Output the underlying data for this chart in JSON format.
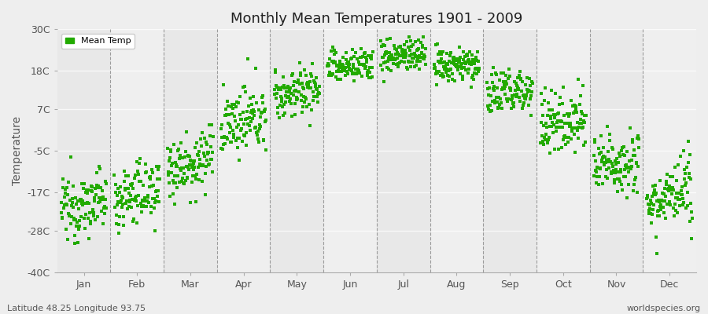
{
  "title": "Monthly Mean Temperatures 1901 - 2009",
  "ylabel": "Temperature",
  "xlabel_bottom_left": "Latitude 48.25 Longitude 93.75",
  "xlabel_bottom_right": "worldspecies.org",
  "legend_label": "Mean Temp",
  "dot_color": "#22aa00",
  "dot_size": 6,
  "background_color": "#eeeeee",
  "plot_bg_color": "#eeeeee",
  "band_color_light": "#ebebeb",
  "band_color_dark": "#e0e0e0",
  "ytick_labels": [
    "30C",
    "18C",
    "7C",
    "-5C",
    "-17C",
    "-28C",
    "-40C"
  ],
  "ytick_values": [
    30,
    18,
    7,
    -5,
    -17,
    -28,
    -40
  ],
  "ylim": [
    -40,
    30
  ],
  "month_names": [
    "Jan",
    "Feb",
    "Mar",
    "Apr",
    "May",
    "Jun",
    "Jul",
    "Aug",
    "Sep",
    "Oct",
    "Nov",
    "Dec"
  ],
  "num_years": 109,
  "year_start": 1901,
  "year_end": 2009,
  "monthly_means": [
    -22,
    -19,
    -10,
    2,
    11,
    19,
    22,
    19,
    11,
    2,
    -10,
    -20
  ],
  "monthly_stds": [
    4.5,
    4.5,
    4.5,
    4.5,
    3.5,
    2.5,
    2.5,
    2.5,
    3.5,
    4.5,
    4.5,
    4.5
  ],
  "monthly_trend": [
    0.03,
    0.03,
    0.03,
    0.03,
    0.02,
    0.01,
    0.01,
    0.01,
    0.02,
    0.03,
    0.03,
    0.03
  ]
}
